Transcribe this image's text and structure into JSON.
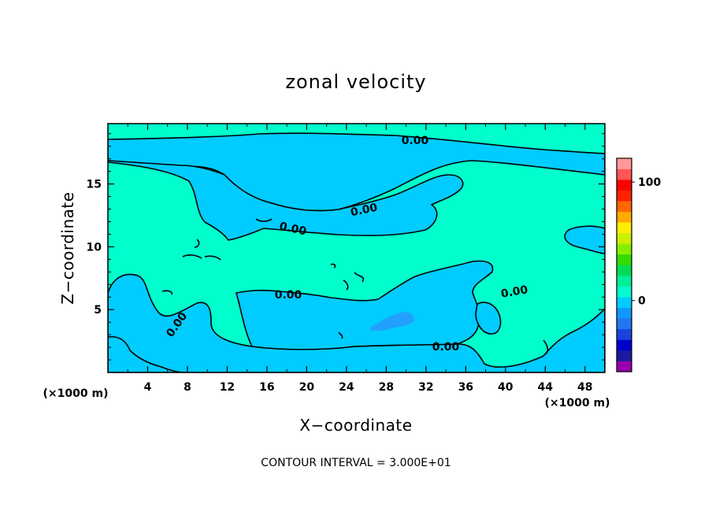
{
  "chart_data": {
    "type": "heatmap",
    "title": "zonal velocity",
    "xlabel": "X−coordinate",
    "ylabel": "Z−coordinate",
    "x_unit": "(×1000 m)",
    "z_unit": "(×1000 m)",
    "xlim": [
      0,
      50
    ],
    "ylim": [
      0,
      19.8
    ],
    "x_ticks": [
      "4",
      "8",
      "12",
      "16",
      "20",
      "24",
      "28",
      "32",
      "36",
      "40",
      "44",
      "48"
    ],
    "y_ticks": [
      "5",
      "10",
      "15"
    ],
    "contour_labels": [
      "0.00",
      "0.00",
      "0.00",
      "0.00",
      "0.00",
      "0.00",
      "0.00"
    ],
    "contour_interval": "CONTOUR INTERVAL = 3.000E+01",
    "colorbar": {
      "min": -60,
      "max": 120,
      "labels": [
        "100",
        "0"
      ],
      "colors": [
        "#9900aa",
        "#1a1aa0",
        "#0000cc",
        "#1a44dd",
        "#2277ee",
        "#1199ff",
        "#00ccff",
        "#00ffcc",
        "#00ee99",
        "#00dd55",
        "#33dd00",
        "#88ee00",
        "#ccee00",
        "#ffee00",
        "#ffaa00",
        "#ff6600",
        "#ff2200",
        "#ff0000",
        "#ff5555",
        "#ff9999"
      ]
    },
    "regions": {
      "background_color": "#00ffcc",
      "negative_color": "#00ccff",
      "min_color": "#22a0ff",
      "value_background": "0 to 30",
      "value_negative": "-30 to 0"
    }
  }
}
